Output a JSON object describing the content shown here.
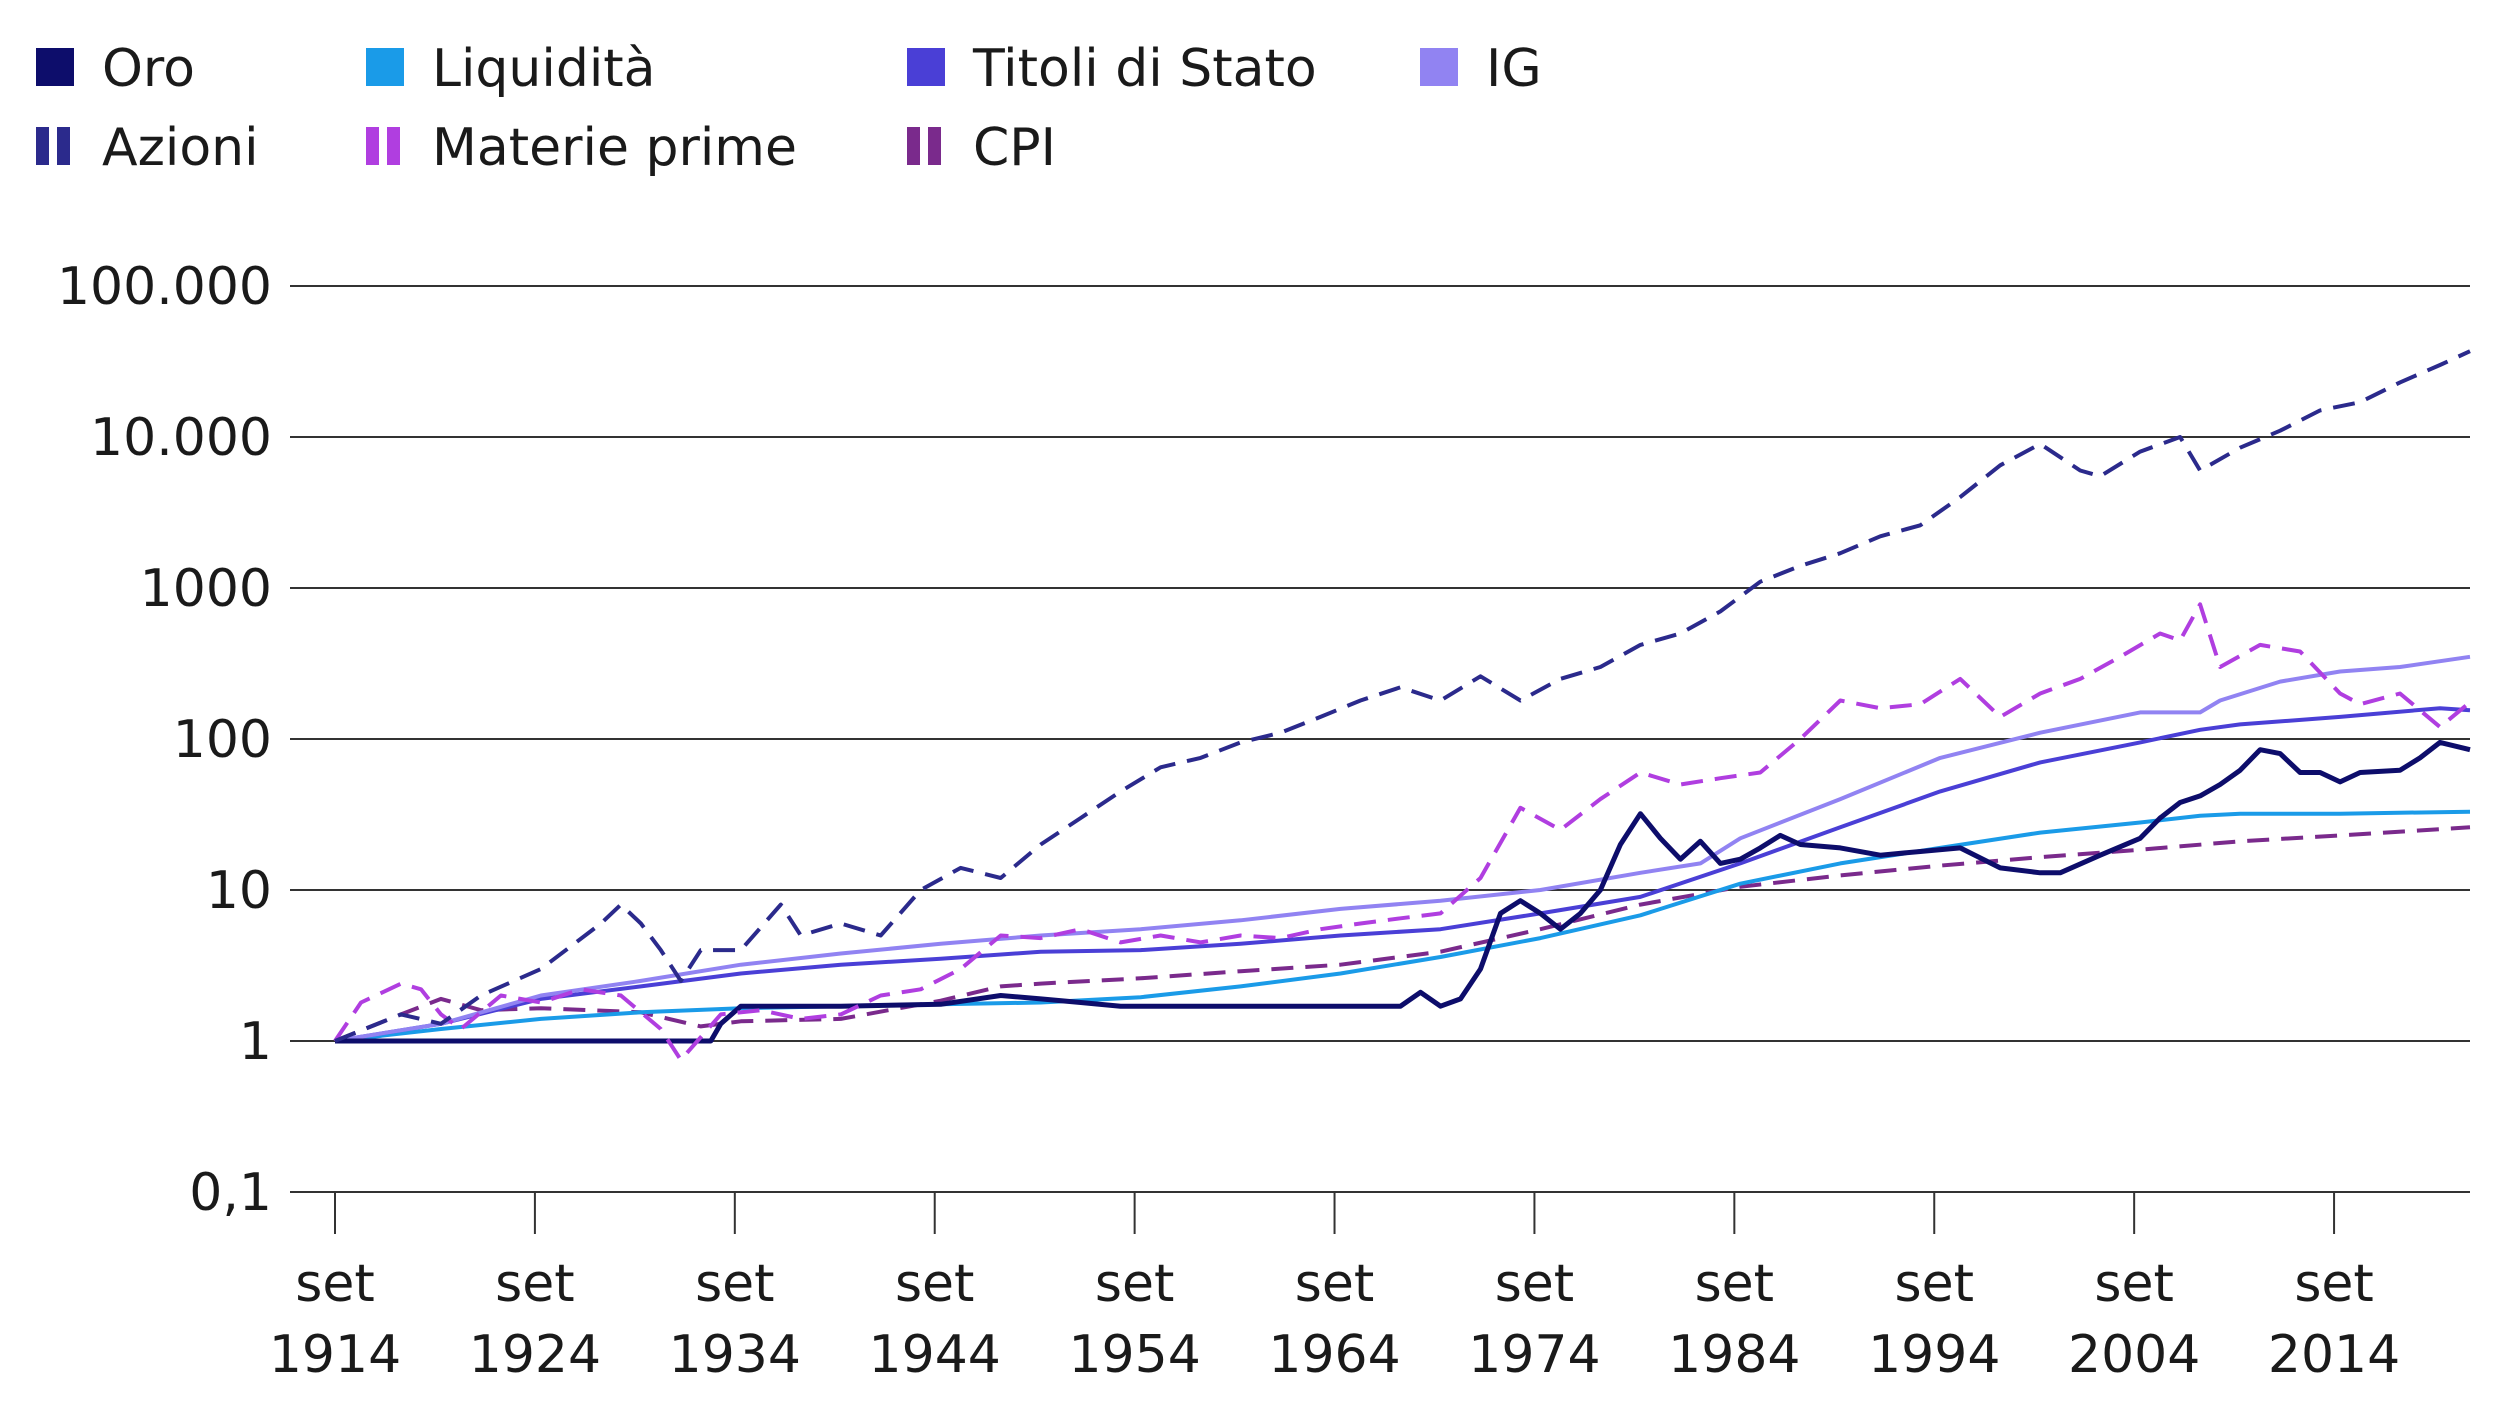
{
  "chart_data": {
    "type": "line",
    "title": "",
    "xlabel": "",
    "ylabel": "",
    "y_scale": "log",
    "ylim": [
      0.1,
      100000
    ],
    "xlim": [
      1914.7,
      2021.5
    ],
    "grid": "horizontal",
    "legend_position": "top-left",
    "y_ticks": [
      {
        "value": 100000,
        "label": "100.000"
      },
      {
        "value": 10000,
        "label": "10.000"
      },
      {
        "value": 1000,
        "label": "1000"
      },
      {
        "value": 100,
        "label": "100"
      },
      {
        "value": 10,
        "label": "10"
      },
      {
        "value": 1,
        "label": "1"
      },
      {
        "value": 0.1,
        "label": "0,1"
      }
    ],
    "x_ticks": [
      {
        "value": 1914.7,
        "line1": "set",
        "line2": "1914"
      },
      {
        "value": 1924.7,
        "line1": "set",
        "line2": "1924"
      },
      {
        "value": 1934.7,
        "line1": "set",
        "line2": "1934"
      },
      {
        "value": 1944.7,
        "line1": "set",
        "line2": "1944"
      },
      {
        "value": 1954.7,
        "line1": "set",
        "line2": "1954"
      },
      {
        "value": 1964.7,
        "line1": "set",
        "line2": "1964"
      },
      {
        "value": 1974.7,
        "line1": "set",
        "line2": "1974"
      },
      {
        "value": 1984.7,
        "line1": "set",
        "line2": "1984"
      },
      {
        "value": 1994.7,
        "line1": "set",
        "line2": "1994"
      },
      {
        "value": 2004.7,
        "line1": "set",
        "line2": "2004"
      },
      {
        "value": 2014.7,
        "line1": "set",
        "line2": "2014"
      }
    ],
    "series": [
      {
        "name": "Oro",
        "color": "#0d0d6b",
        "dashed": false,
        "width": 5,
        "points": [
          [
            1914.7,
            1
          ],
          [
            1933.5,
            1
          ],
          [
            1934,
            1.3
          ],
          [
            1935,
            1.7
          ],
          [
            1940,
            1.7
          ],
          [
            1945,
            1.75
          ],
          [
            1948,
            2.0
          ],
          [
            1950,
            1.9
          ],
          [
            1952,
            1.8
          ],
          [
            1954,
            1.7
          ],
          [
            1960,
            1.7
          ],
          [
            1968,
            1.7
          ],
          [
            1969,
            2.1
          ],
          [
            1970,
            1.7
          ],
          [
            1971,
            1.9
          ],
          [
            1972,
            3.0
          ],
          [
            1973,
            7.0
          ],
          [
            1974,
            8.5
          ],
          [
            1975,
            7.0
          ],
          [
            1976,
            5.5
          ],
          [
            1977,
            7.0
          ],
          [
            1978,
            10
          ],
          [
            1979,
            20
          ],
          [
            1980,
            32
          ],
          [
            1981,
            22
          ],
          [
            1982,
            16
          ],
          [
            1983,
            21
          ],
          [
            1984,
            15
          ],
          [
            1985,
            16
          ],
          [
            1986,
            19
          ],
          [
            1987,
            23
          ],
          [
            1988,
            20
          ],
          [
            1990,
            19
          ],
          [
            1992,
            17
          ],
          [
            1994,
            18
          ],
          [
            1996,
            19
          ],
          [
            1998,
            14
          ],
          [
            2000,
            13
          ],
          [
            2001,
            13
          ],
          [
            2003,
            17
          ],
          [
            2005,
            22
          ],
          [
            2006,
            30
          ],
          [
            2007,
            38
          ],
          [
            2008,
            42
          ],
          [
            2009,
            50
          ],
          [
            2010,
            62
          ],
          [
            2011,
            85
          ],
          [
            2012,
            80
          ],
          [
            2013,
            60
          ],
          [
            2014,
            60
          ],
          [
            2015,
            52
          ],
          [
            2016,
            60
          ],
          [
            2018,
            62
          ],
          [
            2019,
            75
          ],
          [
            2020,
            95
          ],
          [
            2021.5,
            85
          ]
        ]
      },
      {
        "name": "Liquidità",
        "color": "#1a9be8",
        "dashed": false,
        "width": 4,
        "points": [
          [
            1914.7,
            1
          ],
          [
            1920,
            1.2
          ],
          [
            1925,
            1.4
          ],
          [
            1930,
            1.55
          ],
          [
            1935,
            1.65
          ],
          [
            1940,
            1.7
          ],
          [
            1945,
            1.75
          ],
          [
            1950,
            1.8
          ],
          [
            1955,
            1.95
          ],
          [
            1960,
            2.3
          ],
          [
            1965,
            2.8
          ],
          [
            1970,
            3.6
          ],
          [
            1975,
            4.8
          ],
          [
            1980,
            6.8
          ],
          [
            1985,
            11
          ],
          [
            1990,
            15
          ],
          [
            1995,
            19
          ],
          [
            2000,
            24
          ],
          [
            2005,
            28
          ],
          [
            2008,
            31
          ],
          [
            2010,
            32
          ],
          [
            2015,
            32
          ],
          [
            2021.5,
            33
          ]
        ]
      },
      {
        "name": "Titoli di Stato",
        "color": "#4a3fd6",
        "dashed": false,
        "width": 4,
        "points": [
          [
            1914.7,
            1
          ],
          [
            1920,
            1.3
          ],
          [
            1925,
            1.9
          ],
          [
            1930,
            2.3
          ],
          [
            1935,
            2.8
          ],
          [
            1940,
            3.2
          ],
          [
            1945,
            3.5
          ],
          [
            1950,
            3.9
          ],
          [
            1955,
            4.0
          ],
          [
            1960,
            4.4
          ],
          [
            1965,
            5.0
          ],
          [
            1970,
            5.5
          ],
          [
            1975,
            7
          ],
          [
            1980,
            9
          ],
          [
            1985,
            15
          ],
          [
            1990,
            26
          ],
          [
            1995,
            45
          ],
          [
            2000,
            70
          ],
          [
            2005,
            95
          ],
          [
            2008,
            115
          ],
          [
            2010,
            125
          ],
          [
            2015,
            140
          ],
          [
            2020,
            160
          ],
          [
            2021.5,
            155
          ]
        ]
      },
      {
        "name": "IG",
        "color": "#9183f2",
        "dashed": false,
        "width": 4,
        "points": [
          [
            1914.7,
            1
          ],
          [
            1920,
            1.3
          ],
          [
            1925,
            2.0
          ],
          [
            1930,
            2.5
          ],
          [
            1935,
            3.2
          ],
          [
            1940,
            3.8
          ],
          [
            1945,
            4.4
          ],
          [
            1950,
            5.0
          ],
          [
            1955,
            5.5
          ],
          [
            1960,
            6.3
          ],
          [
            1965,
            7.5
          ],
          [
            1970,
            8.5
          ],
          [
            1975,
            10
          ],
          [
            1980,
            13
          ],
          [
            1983,
            15
          ],
          [
            1985,
            22
          ],
          [
            1990,
            40
          ],
          [
            1995,
            75
          ],
          [
            2000,
            110
          ],
          [
            2005,
            150
          ],
          [
            2008,
            150
          ],
          [
            2009,
            180
          ],
          [
            2012,
            240
          ],
          [
            2015,
            280
          ],
          [
            2018,
            300
          ],
          [
            2021.5,
            350
          ]
        ]
      },
      {
        "name": "Azioni",
        "color": "#2b2a8c",
        "dashed": true,
        "width": 4,
        "points": [
          [
            1914.7,
            1
          ],
          [
            1918,
            1.5
          ],
          [
            1920,
            1.3
          ],
          [
            1922,
            2
          ],
          [
            1925,
            3
          ],
          [
            1928,
            6
          ],
          [
            1929,
            8
          ],
          [
            1930,
            6
          ],
          [
            1931,
            4
          ],
          [
            1932,
            2.5
          ],
          [
            1933,
            4
          ],
          [
            1935,
            4
          ],
          [
            1937,
            8
          ],
          [
            1938,
            5
          ],
          [
            1940,
            6
          ],
          [
            1942,
            5
          ],
          [
            1944,
            10
          ],
          [
            1946,
            14
          ],
          [
            1948,
            12
          ],
          [
            1950,
            20
          ],
          [
            1952,
            30
          ],
          [
            1954,
            45
          ],
          [
            1956,
            65
          ],
          [
            1958,
            75
          ],
          [
            1960,
            95
          ],
          [
            1962,
            110
          ],
          [
            1964,
            140
          ],
          [
            1966,
            180
          ],
          [
            1968,
            220
          ],
          [
            1970,
            180
          ],
          [
            1972,
            260
          ],
          [
            1974,
            180
          ],
          [
            1976,
            250
          ],
          [
            1978,
            300
          ],
          [
            1980,
            420
          ],
          [
            1982,
            500
          ],
          [
            1984,
            700
          ],
          [
            1986,
            1100
          ],
          [
            1988,
            1400
          ],
          [
            1990,
            1700
          ],
          [
            1992,
            2200
          ],
          [
            1994,
            2600
          ],
          [
            1996,
            4000
          ],
          [
            1998,
            6500
          ],
          [
            2000,
            9000
          ],
          [
            2002,
            6000
          ],
          [
            2003,
            5500
          ],
          [
            2005,
            8000
          ],
          [
            2007,
            10000
          ],
          [
            2008,
            6000
          ],
          [
            2010,
            8500
          ],
          [
            2012,
            11000
          ],
          [
            2014,
            15000
          ],
          [
            2016,
            17000
          ],
          [
            2018,
            23000
          ],
          [
            2020,
            30000
          ],
          [
            2021.5,
            37000
          ]
        ]
      },
      {
        "name": "Materie prime",
        "color": "#b03ee0",
        "dashed": true,
        "width": 4,
        "points": [
          [
            1914.7,
            1
          ],
          [
            1916,
            1.8
          ],
          [
            1918,
            2.4
          ],
          [
            1919,
            2.2
          ],
          [
            1920,
            1.5
          ],
          [
            1921,
            1.2
          ],
          [
            1923,
            2.0
          ],
          [
            1925,
            1.8
          ],
          [
            1927,
            2.2
          ],
          [
            1929,
            2.0
          ],
          [
            1931,
            1.2
          ],
          [
            1932,
            0.75
          ],
          [
            1934,
            1.5
          ],
          [
            1936,
            1.6
          ],
          [
            1938,
            1.4
          ],
          [
            1940,
            1.5
          ],
          [
            1942,
            2.0
          ],
          [
            1944,
            2.2
          ],
          [
            1946,
            3.0
          ],
          [
            1948,
            5.0
          ],
          [
            1950,
            4.8
          ],
          [
            1952,
            5.5
          ],
          [
            1954,
            4.5
          ],
          [
            1956,
            5.0
          ],
          [
            1958,
            4.5
          ],
          [
            1960,
            5.0
          ],
          [
            1962,
            4.8
          ],
          [
            1964,
            5.5
          ],
          [
            1966,
            6.0
          ],
          [
            1968,
            6.5
          ],
          [
            1970,
            7.0
          ],
          [
            1972,
            12
          ],
          [
            1974,
            35
          ],
          [
            1976,
            25
          ],
          [
            1978,
            40
          ],
          [
            1980,
            60
          ],
          [
            1982,
            50
          ],
          [
            1984,
            55
          ],
          [
            1986,
            60
          ],
          [
            1988,
            100
          ],
          [
            1990,
            180
          ],
          [
            1992,
            160
          ],
          [
            1994,
            170
          ],
          [
            1996,
            250
          ],
          [
            1998,
            140
          ],
          [
            2000,
            200
          ],
          [
            2002,
            250
          ],
          [
            2004,
            350
          ],
          [
            2006,
            500
          ],
          [
            2007,
            450
          ],
          [
            2008,
            780
          ],
          [
            2009,
            300
          ],
          [
            2011,
            420
          ],
          [
            2013,
            380
          ],
          [
            2015,
            200
          ],
          [
            2016,
            170
          ],
          [
            2018,
            200
          ],
          [
            2020,
            120
          ],
          [
            2021.5,
            175
          ]
        ]
      },
      {
        "name": "CPI",
        "color": "#7a2a8c",
        "dashed": true,
        "width": 4,
        "points": [
          [
            1914.7,
            1
          ],
          [
            1918,
            1.5
          ],
          [
            1920,
            1.9
          ],
          [
            1922,
            1.6
          ],
          [
            1925,
            1.65
          ],
          [
            1930,
            1.55
          ],
          [
            1933,
            1.25
          ],
          [
            1935,
            1.35
          ],
          [
            1940,
            1.4
          ],
          [
            1945,
            1.85
          ],
          [
            1948,
            2.3
          ],
          [
            1950,
            2.4
          ],
          [
            1955,
            2.6
          ],
          [
            1960,
            2.9
          ],
          [
            1965,
            3.2
          ],
          [
            1970,
            3.9
          ],
          [
            1975,
            5.5
          ],
          [
            1980,
            8.0
          ],
          [
            1985,
            10.5
          ],
          [
            1990,
            12.5
          ],
          [
            1995,
            14.5
          ],
          [
            2000,
            16.5
          ],
          [
            2005,
            18.5
          ],
          [
            2010,
            21
          ],
          [
            2015,
            23
          ],
          [
            2021.5,
            26
          ]
        ]
      }
    ]
  },
  "legend": [
    {
      "label": "Oro",
      "color": "#0d0d6b",
      "dashed": false
    },
    {
      "label": "Liquidità",
      "color": "#1a9be8",
      "dashed": false
    },
    {
      "label": "Titoli di Stato",
      "color": "#4a3fd6",
      "dashed": false
    },
    {
      "label": "IG",
      "color": "#9183f2",
      "dashed": false
    },
    {
      "label": "Azioni",
      "color": "#2b2a8c",
      "dashed": true
    },
    {
      "label": "Materie prime",
      "color": "#b03ee0",
      "dashed": true
    },
    {
      "label": "CPI",
      "color": "#7a2a8c",
      "dashed": true
    }
  ]
}
